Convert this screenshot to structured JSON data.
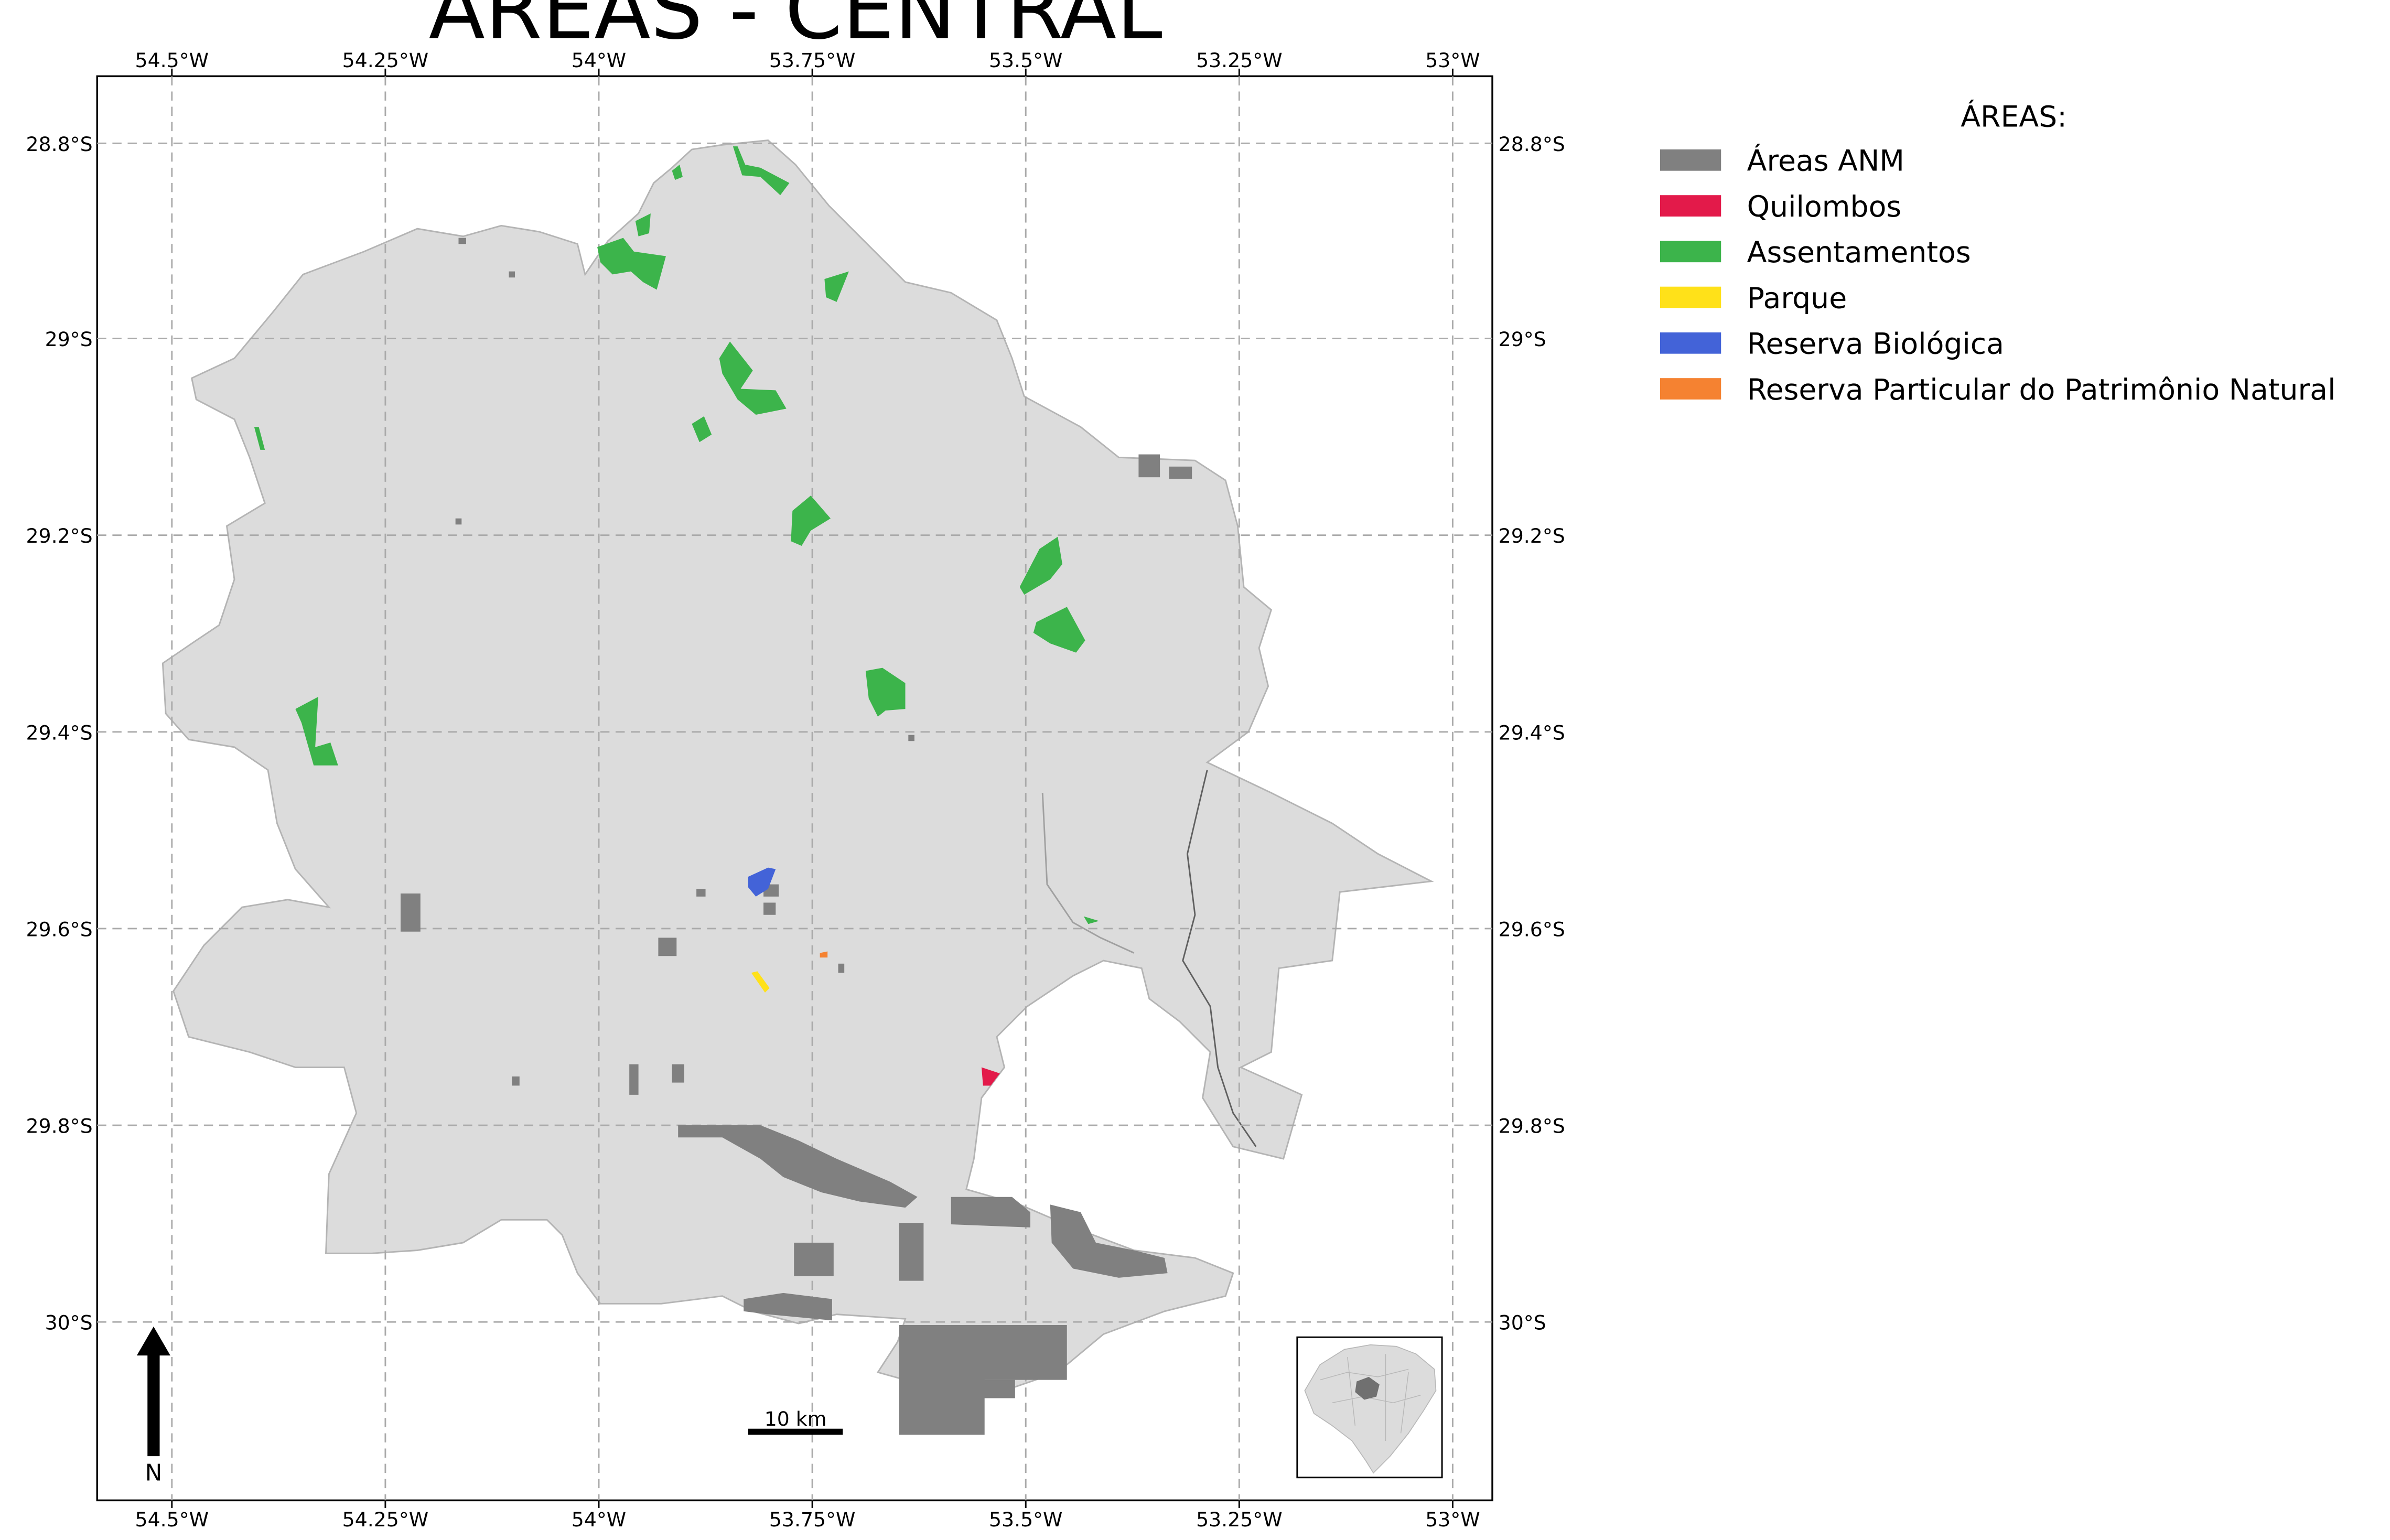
{
  "title": "ÁREAS - CENTRAL",
  "lon_ticks": [
    "54.5°W",
    "54.25°W",
    "54°W",
    "53.75°W",
    "53.5°W",
    "53.25°W",
    "53°W"
  ],
  "lat_ticks": [
    "28.8°S",
    "29°S",
    "29.2°S",
    "29.4°S",
    "29.6°S",
    "29.8°S",
    "30°S"
  ],
  "legend": {
    "title": "ÁREAS:",
    "items": [
      {
        "label": "Áreas ANM",
        "color": "#808080"
      },
      {
        "label": "Quilombos",
        "color": "#e31a4a"
      },
      {
        "label": "Assentamentos",
        "color": "#3cb44b"
      },
      {
        "label": "Parque",
        "color": "#ffe119"
      },
      {
        "label": "Reserva Biológica",
        "color": "#4363d8"
      },
      {
        "label": "Reserva Particular do Patrimônio Natural",
        "color": "#f58231"
      }
    ]
  },
  "scale_bar": {
    "label": "10 km"
  },
  "north_arrow": {
    "label": "N"
  },
  "colors": {
    "land": "#dcdcdc",
    "land_border": "#b4b4b4",
    "grid": "#aaaaaa",
    "inset_highlight": "#707070"
  }
}
